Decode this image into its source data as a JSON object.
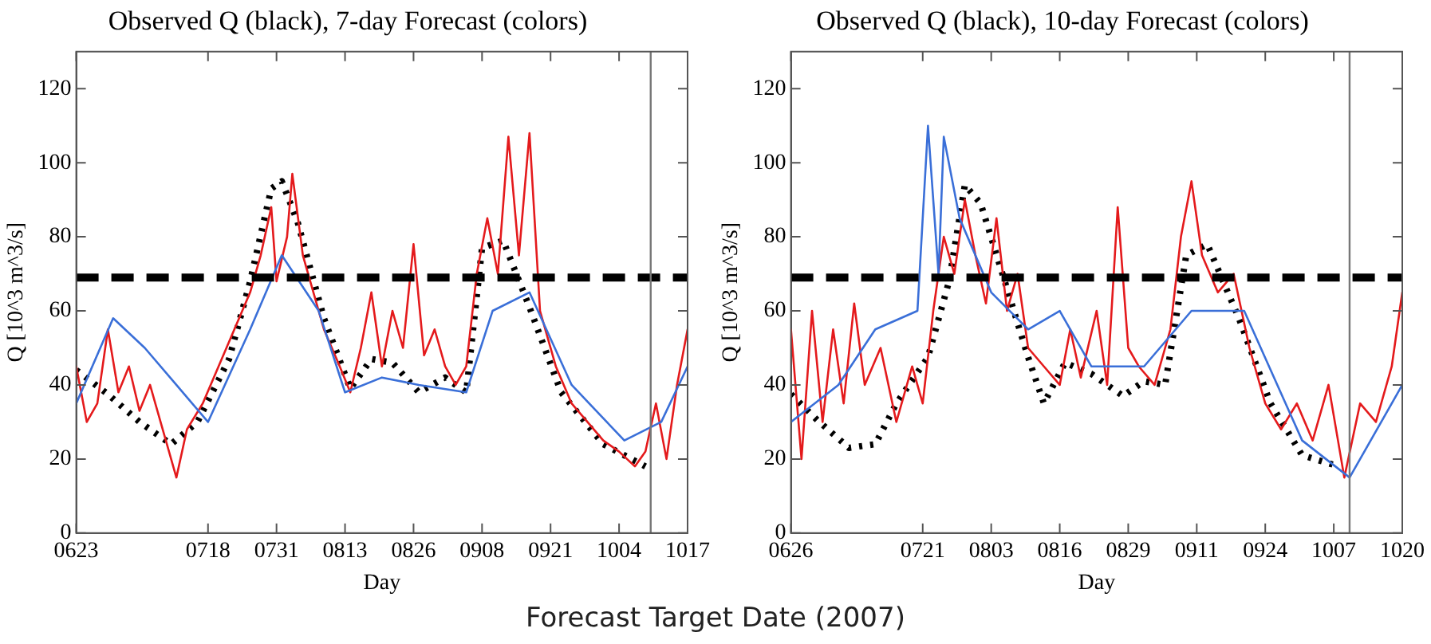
{
  "chart_data": [
    {
      "type": "line",
      "title": "Observed Q (black), 7-day Forecast (colors)",
      "xlabel": "Day",
      "ylabel": "Q [10^3 m^3/s]",
      "xlim": [
        "2007-06-23",
        "2007-10-17"
      ],
      "ylim": [
        0,
        130
      ],
      "yticks": [
        0,
        20,
        40,
        60,
        80,
        100,
        120
      ],
      "xticks": [
        {
          "value": "2007-06-23",
          "label": "0623"
        },
        {
          "value": "2007-07-18",
          "label": "0718"
        },
        {
          "value": "2007-07-31",
          "label": "0731"
        },
        {
          "value": "2007-08-13",
          "label": "0813"
        },
        {
          "value": "2007-08-26",
          "label": "0826"
        },
        {
          "value": "2007-09-08",
          "label": "0908"
        },
        {
          "value": "2007-09-21",
          "label": "0921"
        },
        {
          "value": "2007-10-04",
          "label": "1004"
        },
        {
          "value": "2007-10-17",
          "label": "1017"
        }
      ],
      "grid": false,
      "legend": false,
      "marker": "none",
      "ref_lines": [
        {
          "axis": "y",
          "value": 69,
          "color": "#000000",
          "line_style": "dashed"
        },
        {
          "axis": "x",
          "value": "2007-10-10",
          "color": "#777777",
          "line_style": "solid"
        }
      ],
      "annotations": [
        "Forecast Target Date (2007)"
      ],
      "series": [
        {
          "color": "#3a6fd8",
          "x": [
            "2007-06-23",
            "2007-06-30",
            "2007-07-06",
            "2007-07-12",
            "2007-07-18",
            "2007-07-26",
            "2007-08-01",
            "2007-08-08",
            "2007-08-13",
            "2007-08-20",
            "2007-08-27",
            "2007-09-05",
            "2007-09-10",
            "2007-09-17",
            "2007-09-25",
            "2007-10-05",
            "2007-10-12",
            "2007-10-17"
          ],
          "values": [
            35,
            58,
            50,
            40,
            30,
            55,
            75,
            60,
            38,
            42,
            40,
            38,
            60,
            65,
            40,
            25,
            30,
            45
          ]
        },
        {
          "color": "#e41a1c",
          "x": [
            "2007-06-23",
            "2007-06-25",
            "2007-06-27",
            "2007-06-29",
            "2007-07-01",
            "2007-07-03",
            "2007-07-05",
            "2007-07-07",
            "2007-07-10",
            "2007-07-12",
            "2007-07-14",
            "2007-07-17",
            "2007-07-20",
            "2007-07-23",
            "2007-07-26",
            "2007-07-28",
            "2007-07-30",
            "2007-07-31",
            "2007-08-02",
            "2007-08-03",
            "2007-08-05",
            "2007-08-07",
            "2007-08-09",
            "2007-08-12",
            "2007-08-14",
            "2007-08-16",
            "2007-08-18",
            "2007-08-20",
            "2007-08-22",
            "2007-08-24",
            "2007-08-26",
            "2007-08-28",
            "2007-08-30",
            "2007-09-01",
            "2007-09-03",
            "2007-09-05",
            "2007-09-07",
            "2007-09-09",
            "2007-09-11",
            "2007-09-13",
            "2007-09-15",
            "2007-09-17",
            "2007-09-19",
            "2007-09-22",
            "2007-09-25",
            "2007-09-28",
            "2007-10-01",
            "2007-10-04",
            "2007-10-07",
            "2007-10-09",
            "2007-10-11",
            "2007-10-13",
            "2007-10-15",
            "2007-10-17"
          ],
          "values": [
            45,
            30,
            35,
            55,
            38,
            45,
            33,
            40,
            25,
            15,
            28,
            35,
            45,
            55,
            65,
            75,
            88,
            68,
            80,
            97,
            75,
            65,
            55,
            45,
            38,
            50,
            65,
            45,
            60,
            50,
            78,
            48,
            55,
            45,
            40,
            45,
            70,
            85,
            70,
            107,
            75,
            108,
            60,
            45,
            35,
            30,
            25,
            22,
            18,
            22,
            35,
            20,
            40,
            55
          ]
        },
        {
          "color": "#000000",
          "line_style": "dotted",
          "x": [
            "2007-06-23",
            "2007-06-29",
            "2007-07-05",
            "2007-07-11",
            "2007-07-16",
            "2007-07-22",
            "2007-07-26",
            "2007-07-30",
            "2007-08-01",
            "2007-08-04",
            "2007-08-09",
            "2007-08-14",
            "2007-08-18",
            "2007-08-22",
            "2007-08-27",
            "2007-09-01",
            "2007-09-05",
            "2007-09-08",
            "2007-09-12",
            "2007-09-17",
            "2007-09-23",
            "2007-10-01",
            "2007-10-09"
          ],
          "values": [
            44,
            37.5,
            30,
            24,
            30,
            47,
            68,
            93,
            95,
            84,
            58,
            39,
            47,
            46,
            38,
            42,
            38,
            77,
            79,
            61,
            38,
            24,
            18
          ]
        }
      ]
    },
    {
      "type": "line",
      "title": "Observed Q (black), 10-day Forecast (colors)",
      "xlabel": "Day",
      "ylabel": "Q [10^3 m^3/s]",
      "xlim": [
        "2007-06-26",
        "2007-10-20"
      ],
      "ylim": [
        0,
        130
      ],
      "yticks": [
        0,
        20,
        40,
        60,
        80,
        100,
        120
      ],
      "xticks": [
        {
          "value": "2007-06-26",
          "label": "0626"
        },
        {
          "value": "2007-07-21",
          "label": "0721"
        },
        {
          "value": "2007-08-03",
          "label": "0803"
        },
        {
          "value": "2007-08-16",
          "label": "0816"
        },
        {
          "value": "2007-08-29",
          "label": "0829"
        },
        {
          "value": "2007-09-11",
          "label": "0911"
        },
        {
          "value": "2007-09-24",
          "label": "0924"
        },
        {
          "value": "2007-10-07",
          "label": "1007"
        },
        {
          "value": "2007-10-20",
          "label": "1020"
        }
      ],
      "grid": false,
      "legend": false,
      "marker": "none",
      "ref_lines": [
        {
          "axis": "y",
          "value": 69,
          "color": "#000000",
          "line_style": "dashed"
        },
        {
          "axis": "x",
          "value": "2007-10-10",
          "color": "#777777",
          "line_style": "solid"
        }
      ],
      "series": [
        {
          "color": "#3a6fd8",
          "x": [
            "2007-06-26",
            "2007-07-05",
            "2007-07-12",
            "2007-07-20",
            "2007-07-22",
            "2007-07-24",
            "2007-07-25",
            "2007-07-28",
            "2007-08-03",
            "2007-08-10",
            "2007-08-16",
            "2007-08-22",
            "2007-09-01",
            "2007-09-10",
            "2007-09-20",
            "2007-10-01",
            "2007-10-10",
            "2007-10-20"
          ],
          "values": [
            30,
            40,
            55,
            60,
            110,
            70,
            107,
            85,
            65,
            55,
            60,
            45,
            45,
            60,
            60,
            25,
            15,
            40
          ]
        },
        {
          "color": "#e41a1c",
          "x": [
            "2007-06-26",
            "2007-06-28",
            "2007-06-30",
            "2007-07-02",
            "2007-07-04",
            "2007-07-06",
            "2007-07-08",
            "2007-07-10",
            "2007-07-13",
            "2007-07-16",
            "2007-07-19",
            "2007-07-21",
            "2007-07-23",
            "2007-07-25",
            "2007-07-27",
            "2007-07-29",
            "2007-07-31",
            "2007-08-02",
            "2007-08-04",
            "2007-08-06",
            "2007-08-08",
            "2007-08-10",
            "2007-08-13",
            "2007-08-16",
            "2007-08-18",
            "2007-08-20",
            "2007-08-23",
            "2007-08-25",
            "2007-08-27",
            "2007-08-29",
            "2007-08-31",
            "2007-09-03",
            "2007-09-06",
            "2007-09-08",
            "2007-09-10",
            "2007-09-12",
            "2007-09-15",
            "2007-09-18",
            "2007-09-21",
            "2007-09-24",
            "2007-09-27",
            "2007-09-30",
            "2007-10-03",
            "2007-10-06",
            "2007-10-09",
            "2007-10-12",
            "2007-10-15",
            "2007-10-18",
            "2007-10-20"
          ],
          "values": [
            55,
            20,
            60,
            30,
            55,
            35,
            62,
            40,
            50,
            30,
            45,
            35,
            60,
            80,
            70,
            90,
            75,
            62,
            85,
            60,
            70,
            50,
            45,
            40,
            55,
            42,
            60,
            40,
            88,
            50,
            45,
            40,
            55,
            80,
            95,
            75,
            65,
            70,
            50,
            35,
            28,
            35,
            25,
            40,
            15,
            35,
            30,
            45,
            65
          ]
        },
        {
          "color": "#000000",
          "line_style": "dotted",
          "x": [
            "2007-06-26",
            "2007-07-01",
            "2007-07-07",
            "2007-07-12",
            "2007-07-16",
            "2007-07-22",
            "2007-07-26",
            "2007-07-29",
            "2007-08-01",
            "2007-08-06",
            "2007-08-10",
            "2007-08-13",
            "2007-08-17",
            "2007-08-22",
            "2007-08-28",
            "2007-09-01",
            "2007-09-05",
            "2007-09-09",
            "2007-09-13",
            "2007-09-19",
            "2007-09-25",
            "2007-10-01",
            "2007-10-08"
          ],
          "values": [
            37.5,
            30.5,
            23,
            24,
            35,
            47.5,
            68,
            94,
            89,
            66,
            47.5,
            35,
            46,
            43,
            37,
            41,
            40,
            75,
            78,
            58,
            35,
            21,
            18
          ]
        }
      ]
    }
  ]
}
